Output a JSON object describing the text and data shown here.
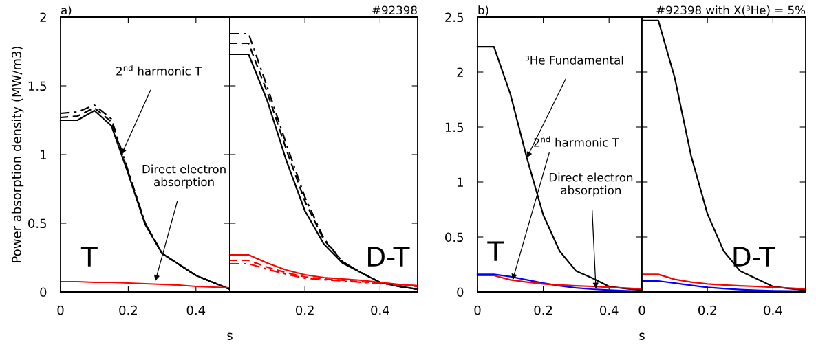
{
  "chart_data": [
    {
      "type": "line",
      "title": "a)",
      "ylabel": "Power absorption density (MW/m3)",
      "x": [
        0,
        0.05,
        0.1,
        0.15,
        0.2,
        0.25,
        0.3,
        0.35,
        0.4,
        0.45,
        0.5
      ],
      "xlim": [
        0,
        0.5
      ],
      "ylim": [
        0,
        2
      ],
      "xticks": [
        0,
        0.2,
        0.4
      ],
      "yticks": [
        0,
        0.5,
        1,
        1.5,
        2
      ],
      "series": [
        {
          "color": "#000000",
          "line_style": "solid",
          "values": [
            1.25,
            1.25,
            1.32,
            1.21,
            0.86,
            0.49,
            0.28,
            0.2,
            0.12,
            0.07,
            0.02
          ]
        },
        {
          "color": "#000000",
          "line_style": "dashed",
          "values": [
            1.27,
            1.28,
            1.34,
            1.24,
            0.87,
            0.5,
            0.28,
            0.2,
            0.12,
            0.07,
            0.02
          ]
        },
        {
          "color": "#000000",
          "line_style": "dashdot",
          "values": [
            1.3,
            1.31,
            1.36,
            1.26,
            0.88,
            0.5,
            0.28,
            0.2,
            0.12,
            0.07,
            0.02
          ]
        },
        {
          "color": "#ff0000",
          "line_style": "solid",
          "values": [
            0.075,
            0.075,
            0.07,
            0.07,
            0.065,
            0.06,
            0.055,
            0.05,
            0.04,
            0.035,
            0.03
          ]
        }
      ],
      "annotations": [
        {
          "text": "2$^{nd}$ harmonic T",
          "x": 0.18,
          "y": 1.0
        },
        {
          "text": "Direct electron\nabsorption",
          "x": 0.28,
          "y": 0.08
        },
        "T"
      ]
    },
    {
      "type": "line",
      "title": "#92398",
      "xlabel": "s",
      "x": [
        0,
        0.05,
        0.1,
        0.15,
        0.2,
        0.25,
        0.3,
        0.35,
        0.4,
        0.45,
        0.5
      ],
      "xlim": [
        0,
        0.5
      ],
      "ylim": [
        0,
        2
      ],
      "xticks": [
        0.2,
        0.4
      ],
      "yticks": [
        0,
        0.5,
        1,
        1.5,
        2
      ],
      "tick_labels": "x",
      "series": [
        {
          "color": "#000000",
          "line_style": "solid",
          "values": [
            1.73,
            1.73,
            1.39,
            0.96,
            0.59,
            0.35,
            0.21,
            0.14,
            0.07,
            0.04,
            0.02
          ]
        },
        {
          "color": "#000000",
          "line_style": "dashed",
          "values": [
            1.81,
            1.81,
            1.45,
            1.04,
            0.66,
            0.38,
            0.22,
            0.14,
            0.07,
            0.04,
            0.02
          ]
        },
        {
          "color": "#000000",
          "line_style": "dashdot",
          "values": [
            1.88,
            1.88,
            1.49,
            1.08,
            0.69,
            0.39,
            0.22,
            0.14,
            0.07,
            0.04,
            0.02
          ]
        },
        {
          "color": "#ff0000",
          "line_style": "solid",
          "values": [
            0.27,
            0.27,
            0.21,
            0.16,
            0.125,
            0.105,
            0.095,
            0.085,
            0.07,
            0.055,
            0.045
          ]
        },
        {
          "color": "#ff0000",
          "line_style": "dashed",
          "values": [
            0.23,
            0.23,
            0.18,
            0.14,
            0.11,
            0.095,
            0.085,
            0.075,
            0.065,
            0.055,
            0.045
          ]
        },
        {
          "color": "#ff0000",
          "line_style": "dashdot",
          "values": [
            0.205,
            0.205,
            0.165,
            0.13,
            0.1,
            0.09,
            0.08,
            0.07,
            0.06,
            0.05,
            0.04
          ]
        }
      ],
      "annotations": [
        "D-T"
      ]
    },
    {
      "type": "line",
      "title": "b)",
      "x": [
        0,
        0.05,
        0.1,
        0.15,
        0.2,
        0.25,
        0.3,
        0.35,
        0.4,
        0.45,
        0.5
      ],
      "xlim": [
        0,
        0.5
      ],
      "ylim": [
        0,
        2.5
      ],
      "xticks": [
        0,
        0.2,
        0.4
      ],
      "yticks": [
        0,
        0.5,
        1,
        1.5,
        2,
        2.5
      ],
      "series": [
        {
          "color": "#000000",
          "line_style": "solid",
          "values": [
            2.23,
            2.23,
            1.8,
            1.22,
            0.7,
            0.37,
            0.19,
            0.125,
            0.05,
            0.03,
            0.015
          ]
        },
        {
          "color": "#0000ff",
          "line_style": "solid",
          "values": [
            0.16,
            0.16,
            0.14,
            0.11,
            0.08,
            0.055,
            0.037,
            0.025,
            0.017,
            0.01,
            0.006
          ]
        },
        {
          "color": "#ff0000",
          "line_style": "solid",
          "values": [
            0.15,
            0.15,
            0.11,
            0.09,
            0.073,
            0.063,
            0.056,
            0.05,
            0.042,
            0.035,
            0.027
          ]
        }
      ],
      "annotations": [
        {
          "text": "³He Fundamental",
          "x": 0.15,
          "y": 1.22
        },
        {
          "text": "2$^{nd}$ harmonic T",
          "x": 0.107,
          "y": 0.11
        },
        {
          "text": "Direct electron\nabsorption",
          "x": 0.36,
          "y": 0.03
        },
        "T"
      ]
    },
    {
      "type": "line",
      "title": "#92398 with X(³He) = 5%",
      "xlabel": "s",
      "x": [
        0,
        0.05,
        0.1,
        0.15,
        0.2,
        0.25,
        0.3,
        0.35,
        0.4,
        0.45,
        0.5
      ],
      "xlim": [
        0,
        0.5
      ],
      "ylim": [
        0,
        2.5
      ],
      "xticks": [
        0,
        0.2,
        0.4
      ],
      "yticks": [
        0,
        0.5,
        1,
        1.5,
        2,
        2.5
      ],
      "tick_labels": "x",
      "series": [
        {
          "color": "#000000",
          "line_style": "solid",
          "values": [
            2.47,
            2.47,
            1.95,
            1.24,
            0.71,
            0.37,
            0.19,
            0.12,
            0.05,
            0.03,
            0.015
          ]
        },
        {
          "color": "#ff0000",
          "line_style": "solid",
          "values": [
            0.16,
            0.16,
            0.115,
            0.09,
            0.073,
            0.063,
            0.056,
            0.05,
            0.042,
            0.035,
            0.027
          ]
        },
        {
          "color": "#0000ff",
          "line_style": "solid",
          "values": [
            0.1,
            0.1,
            0.08,
            0.06,
            0.042,
            0.03,
            0.021,
            0.015,
            0.01,
            0.008,
            0.006
          ]
        }
      ],
      "annotations": [
        "D-T"
      ]
    }
  ]
}
